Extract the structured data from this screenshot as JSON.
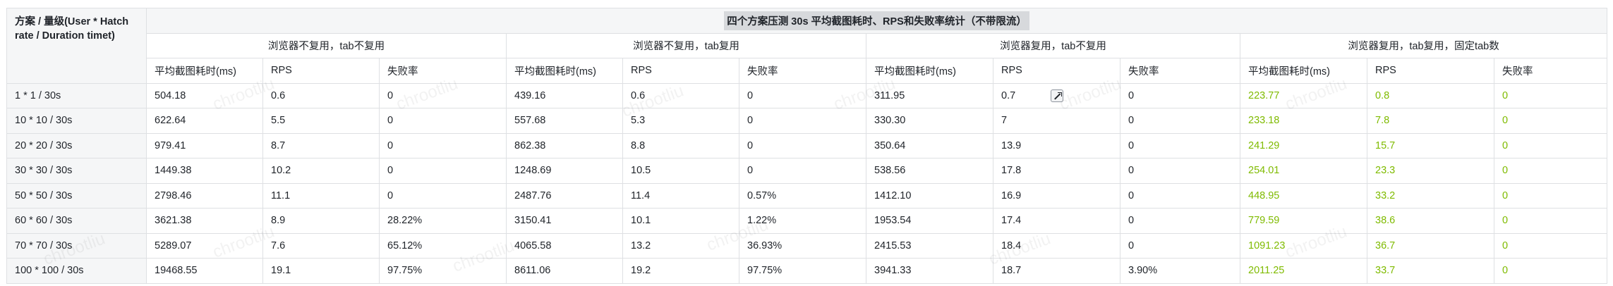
{
  "table": {
    "corner_label": "方案 / 量级(User * Hatch rate /  Duration timet)",
    "caption": "四个方案压测 30s 平均截图耗时、RPS和失败率统计（不带限流）",
    "groups": [
      "浏览器不复用，tab不复用",
      "浏览器不复用，tab复用",
      "浏览器复用，tab不复用",
      "浏览器复用，tab复用，固定tab数"
    ],
    "metrics": [
      "平均截图耗时(ms)",
      "RPS",
      "失败率"
    ],
    "rows": [
      {
        "label": "1 * 1 / 30s",
        "g1": [
          "504.18",
          "0.6",
          "0"
        ],
        "g2": [
          "439.16",
          "0.6",
          "0"
        ],
        "g3": [
          "311.95",
          "0.7",
          "0"
        ],
        "g4": [
          "223.77",
          "0.8",
          "0"
        ]
      },
      {
        "label": "10 * 10 / 30s",
        "g1": [
          "622.64",
          "5.5",
          "0"
        ],
        "g2": [
          "557.68",
          "5.3",
          "0"
        ],
        "g3": [
          "330.30",
          "7",
          "0"
        ],
        "g4": [
          "233.18",
          "7.8",
          "0"
        ]
      },
      {
        "label": "20 * 20 / 30s",
        "g1": [
          "979.41",
          "8.7",
          "0"
        ],
        "g2": [
          "862.38",
          "8.8",
          "0"
        ],
        "g3": [
          "350.64",
          "13.9",
          "0"
        ],
        "g4": [
          "241.29",
          "15.7",
          "0"
        ]
      },
      {
        "label": "30 * 30 / 30s",
        "g1": [
          "1449.38",
          "10.2",
          "0"
        ],
        "g2": [
          "1248.69",
          "10.5",
          "0"
        ],
        "g3": [
          "538.56",
          "17.8",
          "0"
        ],
        "g4": [
          "254.01",
          "23.3",
          "0"
        ]
      },
      {
        "label": "50 * 50 / 30s",
        "g1": [
          "2798.46",
          "11.1",
          "0"
        ],
        "g2": [
          "2487.76",
          "11.4",
          "0.57%"
        ],
        "g3": [
          "1412.10",
          "16.9",
          "0"
        ],
        "g4": [
          "448.95",
          "33.2",
          "0"
        ]
      },
      {
        "label": "60 * 60 / 30s",
        "g1": [
          "3621.38",
          "8.9",
          "28.22%"
        ],
        "g2": [
          "3150.41",
          "10.1",
          "1.22%"
        ],
        "g3": [
          "1953.54",
          "17.4",
          "0"
        ],
        "g4": [
          "779.59",
          "38.6",
          "0"
        ]
      },
      {
        "label": "70 * 70 / 30s",
        "g1": [
          "5289.07",
          "7.6",
          "65.12%"
        ],
        "g2": [
          "4065.58",
          "13.2",
          "36.93%"
        ],
        "g3": [
          "2415.53",
          "18.4",
          "0"
        ],
        "g4": [
          "1091.23",
          "36.7",
          "0"
        ]
      },
      {
        "label": "100 * 100 / 30s",
        "g1": [
          "19468.55",
          " 19.1",
          "97.75%"
        ],
        "g2": [
          "8611.06",
          "19.2",
          "97.75%"
        ],
        "g3": [
          "3941.33",
          "18.7",
          "3.90%"
        ],
        "g4": [
          "2011.25",
          "33.7",
          "0"
        ]
      }
    ]
  },
  "watermark": "chrootliu",
  "colors": {
    "highlight_green": "#7fbb00",
    "header_bg": "#f5f6f7",
    "border": "#dee0e3"
  },
  "icons": {
    "row1_group3_rps": "resize-icon"
  }
}
